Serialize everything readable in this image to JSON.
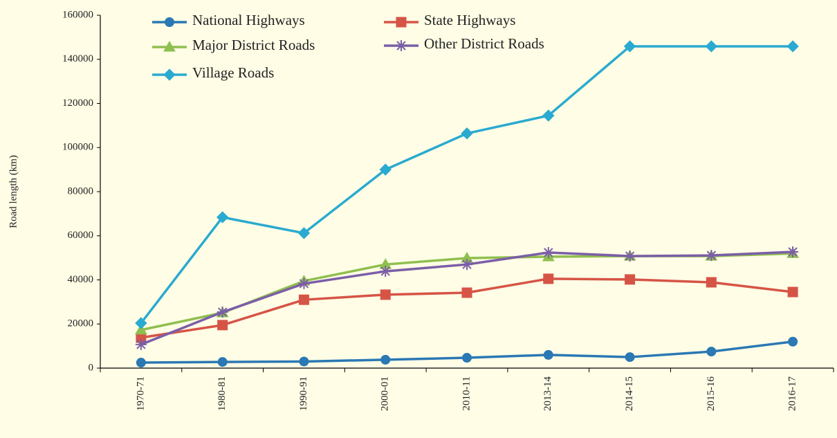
{
  "chart_data": {
    "type": "line",
    "y_label": "Road length (km)",
    "categories": [
      "1970-71",
      "1980-81",
      "1990-91",
      "2000-01",
      "2010-11",
      "2013-14",
      "2014-15",
      "2015-16",
      "2016-17"
    ],
    "series": [
      {
        "name": "National Highways",
        "color": "#2a78b4",
        "marker": "circle",
        "values": [
          2500,
          2800,
          3000,
          3800,
          4700,
          6000,
          5000,
          7500,
          12000
        ]
      },
      {
        "name": "State Highways",
        "color": "#d65446",
        "marker": "square",
        "values": [
          13800,
          19500,
          31000,
          33300,
          34200,
          40500,
          40200,
          38900,
          34500
        ]
      },
      {
        "name": "Major District Roads",
        "color": "#8fbf4f",
        "marker": "triangle",
        "values": [
          17300,
          25100,
          39500,
          47000,
          49900,
          50500,
          50800,
          50800,
          52000
        ]
      },
      {
        "name": "Other District Roads",
        "color": "#7b5ea7",
        "marker": "star",
        "values": [
          10700,
          25400,
          38300,
          43900,
          47000,
          52400,
          50800,
          51100,
          52700
        ]
      },
      {
        "name": "Village Roads",
        "color": "#2aaad0",
        "marker": "diamond",
        "values": [
          20400,
          68400,
          61200,
          90000,
          106400,
          114500,
          145900,
          145900,
          145900
        ]
      }
    ],
    "ylim": [
      0,
      160000
    ],
    "yticks": [
      0,
      20000,
      40000,
      60000,
      80000,
      100000,
      120000,
      140000,
      160000
    ],
    "legend": "upper left"
  }
}
